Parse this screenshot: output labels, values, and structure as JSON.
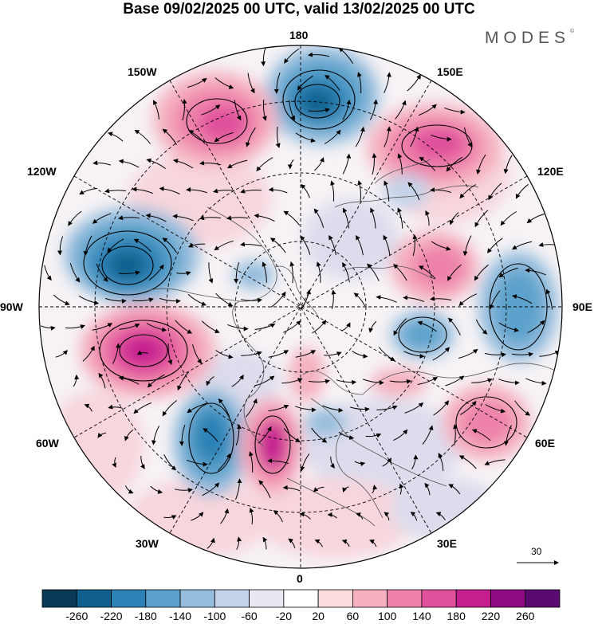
{
  "title": "Base 09/02/2025 00 UTC, valid 13/02/2025 00 UTC",
  "brand": "MODES",
  "brand_mark": "©",
  "map": {
    "projection": "north polar stereographic",
    "longitude_labels": {
      "top": "180",
      "top_left": "150W",
      "top_right": "150E",
      "upper_left": "120W",
      "upper_right": "120E",
      "left": "90W",
      "right": "90E",
      "lower_left": "60W",
      "lower_right": "60E",
      "bottom_left": "30W",
      "bottom_right": "30E",
      "bottom": "0"
    },
    "anomaly_centers": [
      {
        "id": "aleutian-low",
        "sign": "negative",
        "level": -220
      },
      {
        "id": "nw-pacific-high",
        "sign": "positive",
        "level": 180
      },
      {
        "id": "gulf-alaska-high",
        "sign": "positive",
        "level": 140
      },
      {
        "id": "canada-low",
        "sign": "negative",
        "level": -220
      },
      {
        "id": "greenland-high",
        "sign": "positive",
        "level": 220
      },
      {
        "id": "atlantic-low",
        "sign": "negative",
        "level": -220
      },
      {
        "id": "europe-high",
        "sign": "positive",
        "level": 220
      },
      {
        "id": "siberia-high",
        "sign": "positive",
        "level": 140
      },
      {
        "id": "central-asia-low",
        "sign": "negative",
        "level": -140
      },
      {
        "id": "east-asia-low",
        "sign": "negative",
        "level": -140
      },
      {
        "id": "caspian-high",
        "sign": "positive",
        "level": 140
      }
    ]
  },
  "reference_vector": {
    "value": "30"
  },
  "colorbar": {
    "ticks": [
      "-260",
      "-220",
      "-180",
      "-140",
      "-100",
      "-60",
      "-20",
      "20",
      "60",
      "100",
      "140",
      "180",
      "220",
      "260"
    ],
    "colors": [
      "#0b3a57",
      "#105f8c",
      "#2c82b5",
      "#5ba2cc",
      "#95bddd",
      "#c5d3e8",
      "#e8e8f3",
      "#ffffff",
      "#fbdcdc",
      "#f5b1bf",
      "#ee82aa",
      "#e0509c",
      "#c51e8f",
      "#8f0a84",
      "#5a0a70"
    ]
  }
}
